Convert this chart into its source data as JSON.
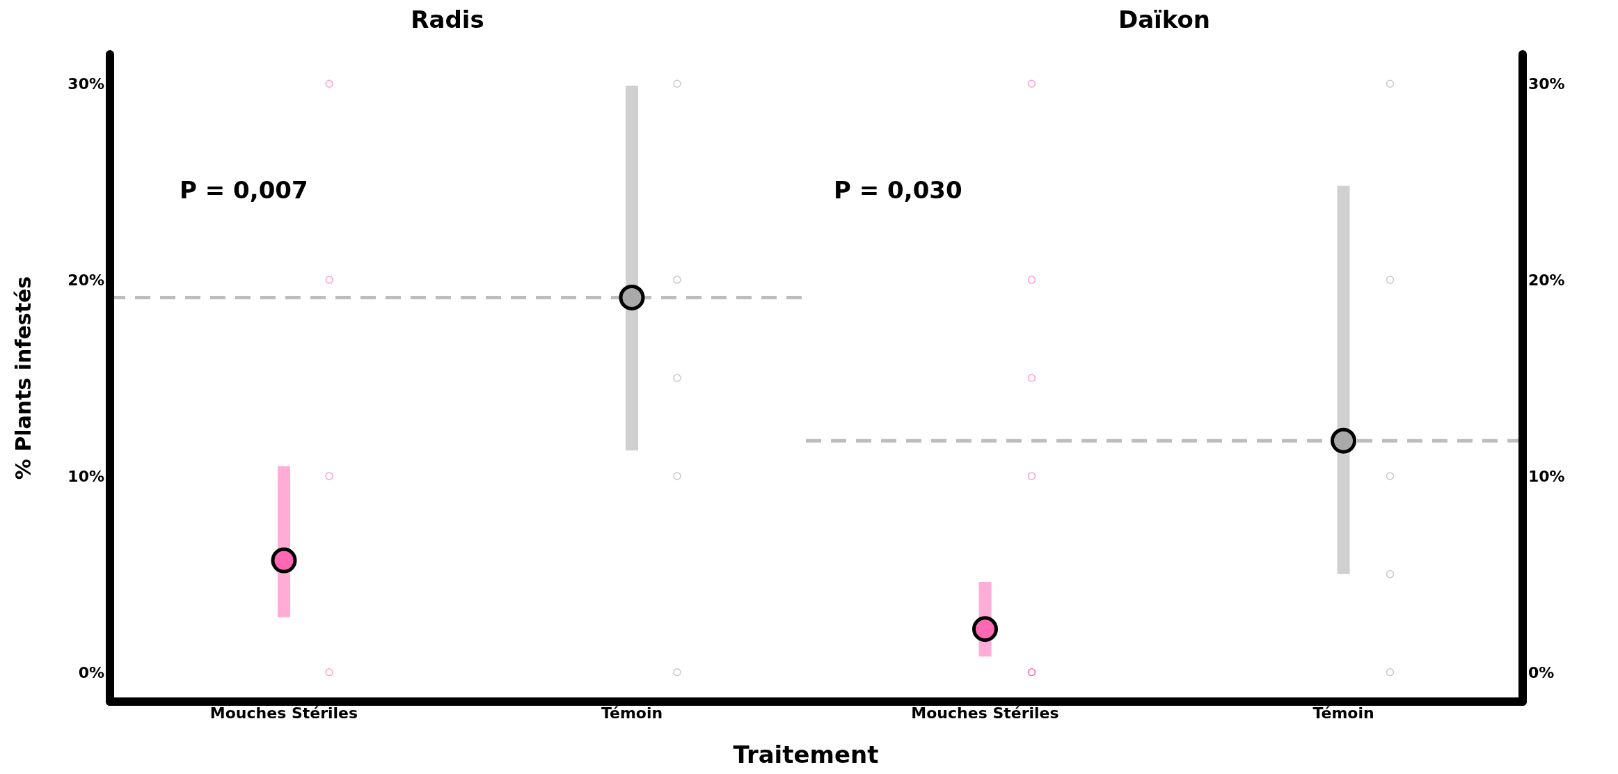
{
  "chart_data": [
    {
      "type": "scatter",
      "title": "Radis",
      "ylabel": "% Plants infestés",
      "xlabel": "Traitement",
      "categories": [
        "Mouches Stériles",
        "Témoin"
      ],
      "ylim": [
        -1.5,
        31.5
      ],
      "yticks": [
        {
          "value": 0,
          "label": "0%"
        },
        {
          "value": 10,
          "label": "10%"
        },
        {
          "value": 20,
          "label": "20%"
        },
        {
          "value": 30,
          "label": "30%"
        }
      ],
      "grid": false,
      "legend": false,
      "marker": "circle",
      "tick_labels": "xy",
      "annotations": [
        "P = 0,007"
      ],
      "ref_lines": [
        {
          "axis": "y",
          "value": 19.1,
          "color": "#bdbdbd",
          "line_style": "dashed"
        }
      ],
      "series": [
        {
          "x": [
            "Mouches Stériles",
            "Mouches Stériles",
            "Mouches Stériles",
            "Mouches Stériles",
            "Témoin",
            "Témoin",
            "Témoin",
            "Témoin",
            "Témoin"
          ],
          "values": [
            0,
            10,
            20,
            30,
            0,
            10,
            15,
            20,
            30
          ],
          "colors": [
            "#ff9fcf",
            "#ff9fcf",
            "#ff9fcf",
            "#ff9fcf",
            "#c8c8c8",
            "#c8c8c8",
            "#c8c8c8",
            "#c8c8c8",
            "#c8c8c8"
          ]
        },
        {
          "x": [
            "Mouches Stériles",
            "Témoin"
          ],
          "values": [
            5.7,
            19.1
          ],
          "colors": [
            "#ff69b4",
            "#a9a9a9"
          ],
          "errors": [
            [
              2.8,
              10.5
            ],
            [
              11.3,
              29.9
            ]
          ]
        }
      ]
    },
    {
      "type": "scatter",
      "title": "Daïkon",
      "categories": [
        "Mouches Stériles",
        "Témoin"
      ],
      "ylim": [
        -1.5,
        31.5
      ],
      "yticks": [
        {
          "value": 0,
          "label": "0%"
        },
        {
          "value": 10,
          "label": "10%"
        },
        {
          "value": 20,
          "label": "20%"
        },
        {
          "value": 30,
          "label": "30%"
        }
      ],
      "grid": false,
      "legend": false,
      "marker": "circle",
      "annotations": [
        "P = 0,030"
      ],
      "ref_lines": [
        {
          "axis": "y",
          "value": 11.8,
          "color": "#bdbdbd",
          "line_style": "dashed"
        }
      ],
      "series": [
        {
          "x": [
            "Mouches Stériles",
            "Mouches Stériles",
            "Mouches Stériles",
            "Mouches Stériles",
            "Mouches Stériles",
            "Témoin",
            "Témoin",
            "Témoin",
            "Témoin",
            "Témoin"
          ],
          "values": [
            0,
            10,
            15,
            20,
            30,
            0,
            5,
            10,
            20,
            30
          ],
          "colors": [
            "#ff69b4",
            "#ff9fcf",
            "#ff9fcf",
            "#ff9fcf",
            "#ff9fcf",
            "#c8c8c8",
            "#c8c8c8",
            "#c8c8c8",
            "#c8c8c8",
            "#c8c8c8"
          ]
        },
        {
          "x": [
            "Mouches Stériles",
            "Témoin"
          ],
          "values": [
            2.2,
            11.8
          ],
          "colors": [
            "#ff69b4",
            "#a9a9a9"
          ],
          "errors": [
            [
              0.8,
              4.6
            ],
            [
              5.0,
              24.8
            ]
          ]
        }
      ]
    }
  ]
}
